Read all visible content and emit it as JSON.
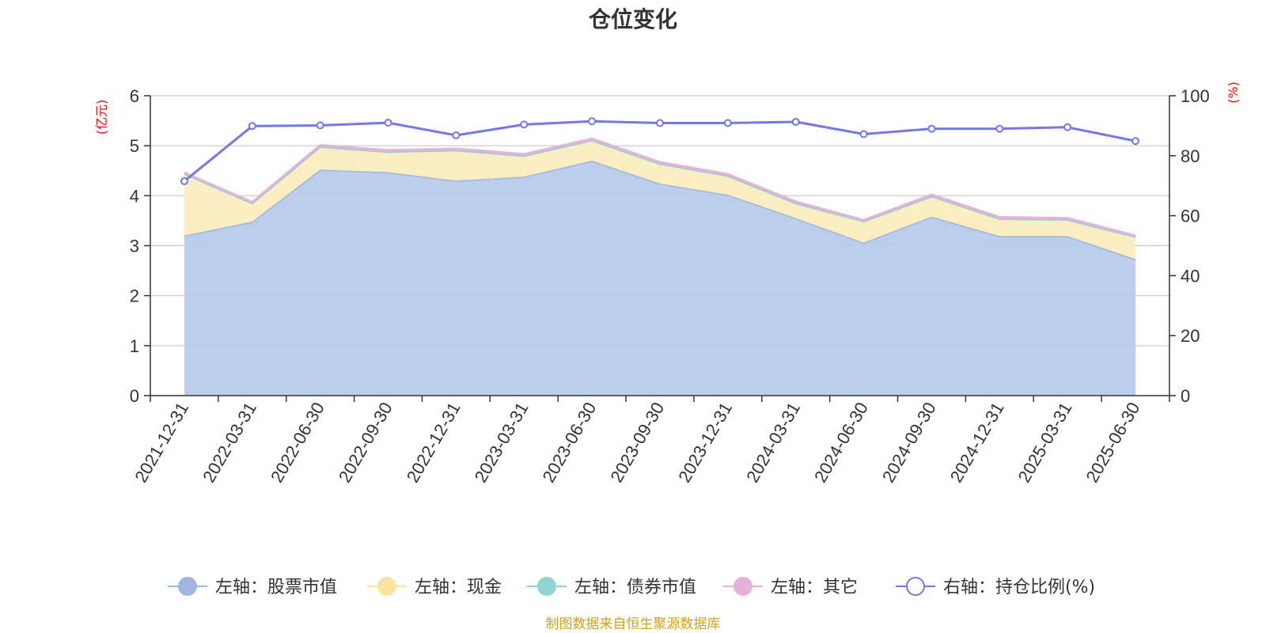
{
  "footer": "制图数据来自恒生聚源数据库",
  "chart_data": {
    "type": "area",
    "title": "仓位变化",
    "left_axis_unit": "(亿元)",
    "right_axis_unit": "(%)",
    "categories": [
      "2021-12-31",
      "2022-03-31",
      "2022-06-30",
      "2022-09-30",
      "2022-12-31",
      "2023-03-31",
      "2023-06-30",
      "2023-09-30",
      "2023-12-31",
      "2024-03-31",
      "2024-06-30",
      "2024-09-30",
      "2024-12-31",
      "2025-03-31",
      "2025-06-30"
    ],
    "left_ylim": [
      0,
      6
    ],
    "left_ticks": [
      0,
      1,
      2,
      3,
      4,
      5,
      6
    ],
    "right_ylim": [
      0,
      100
    ],
    "right_ticks": [
      0,
      20,
      40,
      60,
      80,
      100
    ],
    "grid": true,
    "legend_position": "bottom",
    "series": [
      {
        "name": "左轴：股票市值",
        "axis": "left",
        "kind": "stacked-area",
        "color": "#9db7e0",
        "fill": "#b8cbea",
        "values": [
          3.2,
          3.48,
          4.52,
          4.47,
          4.3,
          4.38,
          4.7,
          4.24,
          4.02,
          3.55,
          3.06,
          3.58,
          3.19,
          3.19,
          2.73
        ]
      },
      {
        "name": "左轴：现金",
        "axis": "left",
        "kind": "stacked-area",
        "color": "#f8e6a0",
        "fill": "#faedbf",
        "values": [
          1.24,
          0.37,
          0.46,
          0.41,
          0.61,
          0.42,
          0.41,
          0.4,
          0.38,
          0.3,
          0.43,
          0.41,
          0.35,
          0.33,
          0.45
        ]
      },
      {
        "name": "左轴：债券市值",
        "axis": "left",
        "kind": "stacked-area",
        "color": "#8fd3d3",
        "fill": "#8fd3d3",
        "values": [
          0,
          0,
          0,
          0,
          0,
          0,
          0,
          0,
          0,
          0,
          0,
          0,
          0,
          0,
          0
        ]
      },
      {
        "name": "左轴：其它",
        "axis": "left",
        "kind": "stacked-area",
        "color": "#e8b2d8",
        "fill": "#e8b2d8",
        "values": [
          0.02,
          0.02,
          0.03,
          0.03,
          0.03,
          0.03,
          0.03,
          0.03,
          0.03,
          0.03,
          0.02,
          0.03,
          0.03,
          0.03,
          0.02
        ]
      },
      {
        "name": "右轴：持仓比例(%)",
        "axis": "right",
        "kind": "line",
        "color": "#7478e6",
        "values": [
          71.5,
          89.9,
          90.1,
          91.0,
          86.8,
          90.4,
          91.5,
          90.9,
          90.9,
          91.3,
          87.2,
          89.0,
          89.0,
          89.5,
          84.9
        ]
      }
    ]
  }
}
